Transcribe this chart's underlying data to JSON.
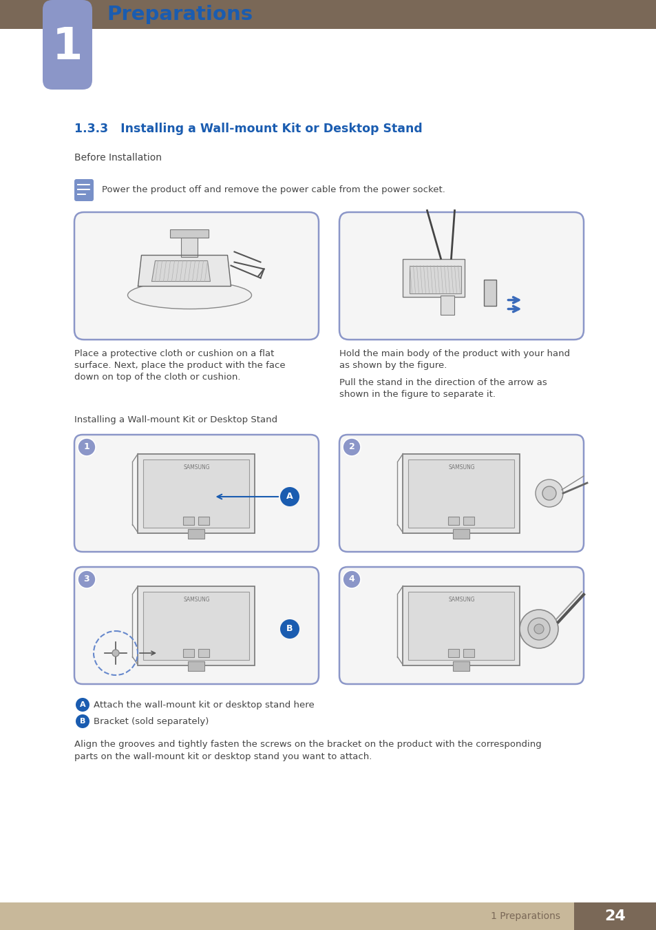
{
  "page_bg": "#ffffff",
  "header_bar_color": "#7a6857",
  "tab_color": "#8b96c8",
  "tab_number": "1",
  "tab_number_color": "#ffffff",
  "section_title": "1.3.3   Installing a Wall-mount Kit or Desktop Stand",
  "section_title_color": "#1a5cb0",
  "section_title_fontsize": 12.5,
  "before_install_label": "Before Installation",
  "text_color": "#444444",
  "warning_text": "Power the product off and remove the power cable from the power socket.",
  "install_label": "Installing a Wall-mount Kit or Desktop Stand",
  "caption_left_line1": "Place a protective cloth or cushion on a flat",
  "caption_left_line2": "surface. Next, place the product with the face",
  "caption_left_line3": "down on top of the cloth or cushion.",
  "caption_right_line1": "Hold the main body of the product with your hand",
  "caption_right_line2": "as shown by the figure.",
  "caption_right_line3": "Pull the stand in the direction of the arrow as",
  "caption_right_line4": "shown in the figure to separate it.",
  "caption_a_text": "Attach the wall-mount kit or desktop stand here",
  "caption_b_text": "Bracket (sold separately)",
  "bottom_line1": "Align the grooves and tightly fasten the screws on the bracket on the product with the corresponding",
  "bottom_line2": "parts on the wall-mount kit or desktop stand you want to attach.",
  "footer_bg": "#c8b89a",
  "footer_text": "1 Preparations",
  "footer_page": "24",
  "footer_page_bg": "#7a6857",
  "footer_text_color": "#7a6857",
  "footer_page_color": "#ffffff",
  "img_border_color": "#8b96c8",
  "step_circle_bg": "#8b96c8",
  "label_circle_bg": "#1a5cb0",
  "hatch_color": "#d0d8e8",
  "arrow_color": "#3a6aba"
}
